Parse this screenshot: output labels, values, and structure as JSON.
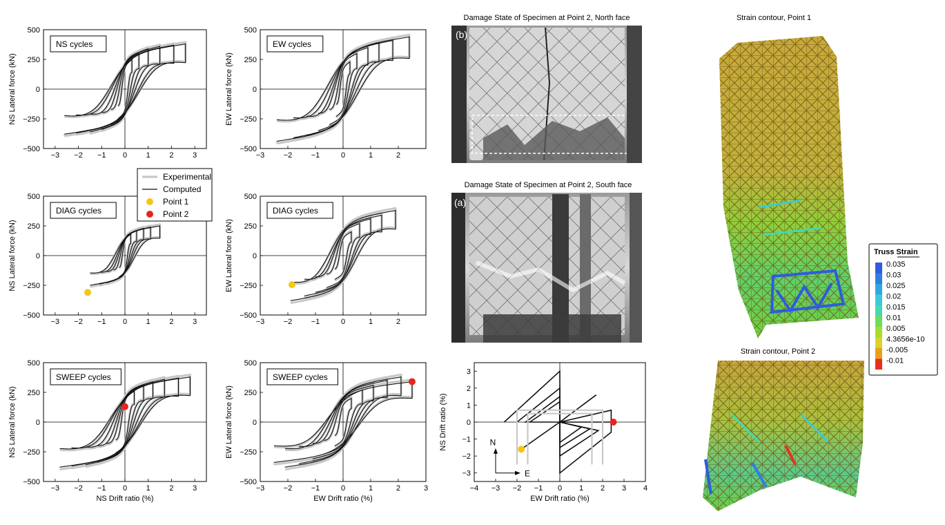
{
  "chart_data": [
    {
      "type": "line",
      "panel": "ns-cycles",
      "box_label": "NS cycles",
      "ylabel": "NS Lateral force (kN)",
      "xlabel": "",
      "xlim": [
        -3.5,
        3.5
      ],
      "ylim": [
        -500,
        500
      ],
      "xticks": [
        -3,
        -2,
        -1,
        0,
        1,
        2,
        3
      ],
      "yticks": [
        -500,
        -250,
        0,
        250,
        500
      ],
      "loops": [
        {
          "d": 0.3,
          "f": 250,
          "n": 0.45
        },
        {
          "d": 0.6,
          "f": 300,
          "n": 0.4
        },
        {
          "d": 1.0,
          "f": 340,
          "n": 0.35
        },
        {
          "d": 1.5,
          "f": 360,
          "n": 0.3
        },
        {
          "d": 2.1,
          "f": 370,
          "n": 0.28
        },
        {
          "d": 2.6,
          "f": 380,
          "n": 0.26
        }
      ],
      "series": [
        {
          "name": "Experimental",
          "scale": 1.04
        },
        {
          "name": "Computed",
          "scale": 1.0
        }
      ]
    },
    {
      "type": "line",
      "panel": "ew-cycles",
      "box_label": "EW cycles",
      "ylabel": "EW Lateral force (kN)",
      "xlabel": "",
      "xlim": [
        -3,
        3
      ],
      "ylim": [
        -500,
        500
      ],
      "xticks": [
        -3,
        -2,
        -1,
        0,
        1,
        2
      ],
      "yticks": [
        -500,
        -250,
        0,
        250,
        500
      ],
      "loops": [
        {
          "d": 0.25,
          "f": 230,
          "n": 0.45
        },
        {
          "d": 0.5,
          "f": 300,
          "n": 0.4
        },
        {
          "d": 0.9,
          "f": 350,
          "n": 0.35
        },
        {
          "d": 1.3,
          "f": 390,
          "n": 0.3
        },
        {
          "d": 1.8,
          "f": 410,
          "n": 0.28
        },
        {
          "d": 2.4,
          "f": 440,
          "n": 0.26
        }
      ],
      "series": [
        {
          "name": "Experimental",
          "scale": 1.04
        },
        {
          "name": "Computed",
          "scale": 1.0
        }
      ]
    },
    {
      "type": "line",
      "panel": "ns-diag",
      "box_label": "DIAG cycles",
      "ylabel": "NS Lateral force (kN)",
      "xlabel": "",
      "xlim": [
        -3.5,
        3.5
      ],
      "ylim": [
        -500,
        500
      ],
      "xticks": [
        -3,
        -2,
        -1,
        0,
        1,
        2,
        3
      ],
      "yticks": [
        -500,
        -250,
        0,
        250,
        500
      ],
      "loops": [
        {
          "d": 0.25,
          "f": 180,
          "n": 0.45
        },
        {
          "d": 0.5,
          "f": 210,
          "n": 0.4
        },
        {
          "d": 0.8,
          "f": 230,
          "n": 0.35
        },
        {
          "d": 1.1,
          "f": 240,
          "n": 0.32
        },
        {
          "d": 1.5,
          "f": 250,
          "n": 0.3
        }
      ],
      "series": [
        {
          "name": "Experimental",
          "scale": 1.05
        },
        {
          "name": "Computed",
          "scale": 1.0
        }
      ],
      "markers": [
        {
          "name": "Point 1",
          "x": -1.6,
          "y": -310
        }
      ]
    },
    {
      "type": "line",
      "panel": "ew-diag",
      "box_label": "DIAG cycles",
      "ylabel": "EW Lateral force (kN)",
      "xlabel": "",
      "xlim": [
        -3,
        3
      ],
      "ylim": [
        -500,
        500
      ],
      "xticks": [
        -3,
        -2,
        -1,
        0,
        1,
        2
      ],
      "yticks": [
        -500,
        -250,
        0,
        250,
        500
      ],
      "loops": [
        {
          "d": 0.3,
          "f": 200,
          "n": 0.45
        },
        {
          "d": 0.6,
          "f": 270,
          "n": 0.4
        },
        {
          "d": 1.0,
          "f": 310,
          "n": 0.35
        },
        {
          "d": 1.4,
          "f": 340,
          "n": 0.3
        },
        {
          "d": 1.9,
          "f": 380,
          "n": 0.28
        }
      ],
      "series": [
        {
          "name": "Experimental",
          "scale": 1.05
        },
        {
          "name": "Computed",
          "scale": 1.0
        }
      ],
      "markers": [
        {
          "name": "Point 1",
          "x": -1.85,
          "y": -245
        }
      ]
    },
    {
      "type": "line",
      "panel": "ns-sweep",
      "box_label": "SWEEP cycles",
      "ylabel": "NS Lateral force (kN)",
      "xlabel": "NS Drift ratio (%)",
      "xlim": [
        -3.5,
        3.5
      ],
      "ylim": [
        -500,
        500
      ],
      "xticks": [
        -3,
        -2,
        -1,
        0,
        1,
        2,
        3
      ],
      "yticks": [
        -500,
        -250,
        0,
        250,
        500
      ],
      "loops": [
        {
          "d": 0.4,
          "f": 260,
          "n": 0.4
        },
        {
          "d": 0.8,
          "f": 310,
          "n": 0.35
        },
        {
          "d": 1.2,
          "f": 340,
          "n": 0.32
        },
        {
          "d": 1.7,
          "f": 360,
          "n": 0.3
        },
        {
          "d": 2.3,
          "f": 370,
          "n": 0.28
        },
        {
          "d": 2.8,
          "f": 380,
          "n": 0.26
        }
      ],
      "series": [
        {
          "name": "Experimental",
          "scale": 1.05
        },
        {
          "name": "Computed",
          "scale": 1.0
        }
      ],
      "markers": [
        {
          "name": "Point 2",
          "x": 0.0,
          "y": 130
        }
      ]
    },
    {
      "type": "line",
      "panel": "ew-sweep",
      "box_label": "SWEEP cycles",
      "ylabel": "EW Lateral force (kN)",
      "xlabel": "EW Drift ratio (%)",
      "xlim": [
        -3,
        3
      ],
      "ylim": [
        -500,
        500
      ],
      "xticks": [
        -3,
        -2,
        -1,
        0,
        1,
        2,
        3
      ],
      "yticks": [
        -500,
        -250,
        0,
        250,
        500
      ],
      "loops": [
        {
          "d": 0.3,
          "f": 200,
          "n": 0.45
        },
        {
          "d": 0.7,
          "f": 270,
          "n": 0.4
        },
        {
          "d": 1.1,
          "f": 310,
          "n": 0.35
        },
        {
          "d": 1.6,
          "f": 350,
          "n": 0.3
        },
        {
          "d": 2.1,
          "f": 380,
          "n": 0.28
        },
        {
          "d": 2.5,
          "f": 340,
          "n": 0.26
        }
      ],
      "series": [
        {
          "name": "Experimental",
          "scale": 1.05
        },
        {
          "name": "Computed",
          "scale": 1.0
        }
      ],
      "markers": [
        {
          "name": "Point 2",
          "x": 2.5,
          "y": 340
        }
      ]
    },
    {
      "type": "line",
      "panel": "drift-path",
      "ylabel": "NS Drift ratio (%)",
      "xlabel": "EW Drift ratio (%)",
      "xlim": [
        -4,
        4
      ],
      "ylim": [
        -3.5,
        3.5
      ],
      "xticks": [
        -4,
        -3,
        -2,
        -1,
        0,
        1,
        2,
        3,
        4
      ],
      "yticks": [
        -3,
        -2,
        -1,
        0,
        1,
        2,
        3
      ],
      "paths": [
        {
          "name": "Computed",
          "points": [
            [
              -2.6,
              0
            ],
            [
              0,
              3.0
            ],
            [
              0,
              -3.0
            ],
            [
              2.4,
              -0.6
            ],
            [
              2.4,
              0.7
            ],
            [
              0,
              0
            ],
            [
              1.7,
              1.6
            ],
            [
              0,
              0
            ],
            [
              -1.8,
              -1.6
            ],
            [
              0,
              0
            ],
            [
              2.5,
              0
            ]
          ]
        },
        {
          "name": "Computed",
          "points": [
            [
              -2.0,
              0
            ],
            [
              0,
              2.0
            ],
            [
              0,
              -2.0
            ],
            [
              1.8,
              -0.5
            ],
            [
              0,
              0
            ],
            [
              -1.6,
              0
            ],
            [
              0,
              1.5
            ],
            [
              0,
              -1.5
            ],
            [
              1.4,
              -0.4
            ],
            [
              0,
              0
            ]
          ]
        },
        {
          "name": "Computed",
          "points": [
            [
              -1.4,
              0
            ],
            [
              0,
              1.2
            ],
            [
              0,
              -1.2
            ],
            [
              1.0,
              -0.3
            ],
            [
              0,
              0
            ]
          ]
        },
        {
          "name": "Experimental",
          "points": [
            [
              -1.5,
              -2.5
            ],
            [
              -1.5,
              0.5
            ],
            [
              1.5,
              0.5
            ],
            [
              1.5,
              -2.5
            ]
          ]
        },
        {
          "name": "Experimental",
          "points": [
            [
              -2.0,
              -2.5
            ],
            [
              -2.0,
              0.7
            ],
            [
              2.0,
              0.7
            ],
            [
              2.0,
              -2.5
            ]
          ]
        }
      ],
      "markers": [
        {
          "name": "Point 1",
          "x": -1.8,
          "y": -1.6
        },
        {
          "name": "Point 2",
          "x": 2.5,
          "y": 0.0
        }
      ],
      "compass": {
        "north": "N",
        "east": "E"
      }
    }
  ],
  "legend": {
    "items": [
      {
        "label": "Experimental",
        "kind": "line",
        "color": "#c8c8c8"
      },
      {
        "label": "Computed",
        "kind": "line",
        "color": "#111111"
      },
      {
        "label": "Point 1",
        "kind": "dot",
        "color": "#f5c518"
      },
      {
        "label": "Point 2",
        "kind": "dot",
        "color": "#e8241c"
      }
    ]
  },
  "photos": {
    "north": {
      "title": "Damage State of Specimen at Point 2, North face",
      "tag": "(b)"
    },
    "south": {
      "title": "Damage State of Specimen at Point 2, South face",
      "tag": "(a)"
    }
  },
  "contours": {
    "point1_title": "Strain contour, Point 1",
    "point2_title": "Strain contour, Point 2",
    "colorbar": {
      "title": "Truss Strain",
      "labels": [
        "0.035",
        "0.03",
        "0.025",
        "0.02",
        "0.015",
        "0.01",
        "0.005",
        "4.3656e-10",
        "-0.005",
        "-0.01"
      ],
      "colors": [
        "#2f5be0",
        "#2f7fe0",
        "#2fa8e0",
        "#3ccad8",
        "#46d8b0",
        "#6fdc5c",
        "#a8dc2c",
        "#d8d52a",
        "#e8a020",
        "#e83020"
      ]
    }
  },
  "colors": {
    "experimental": "#c8c8c8",
    "computed": "#111111",
    "point1": "#f5c518",
    "point2": "#e8241c",
    "truss_base": "#c8a93a"
  }
}
